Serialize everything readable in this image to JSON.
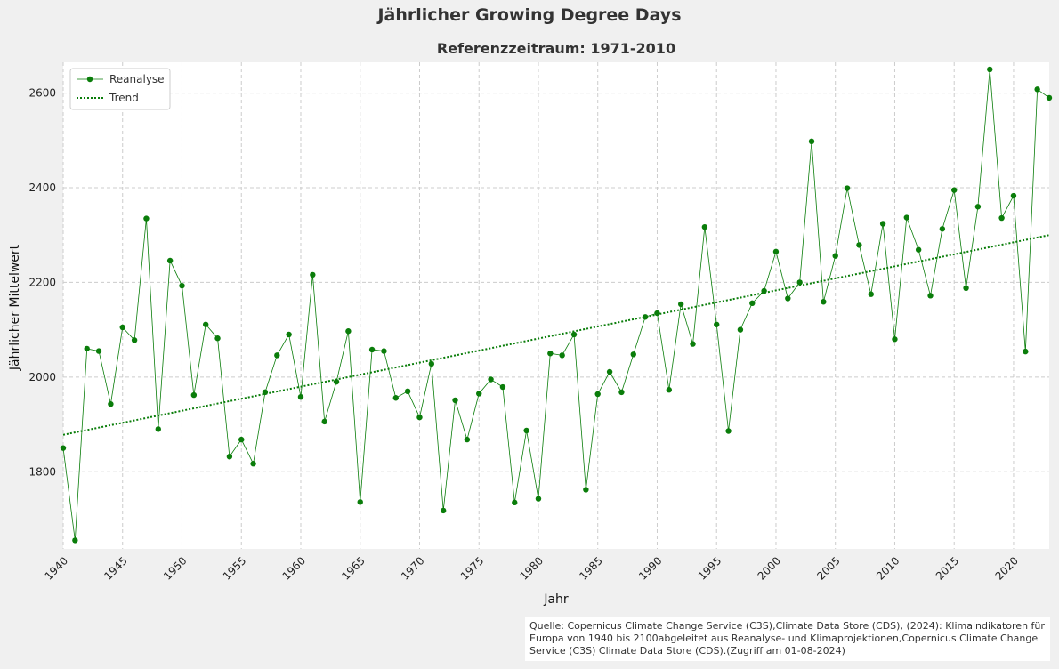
{
  "title": "Jährlicher Growing Degree Days",
  "subtitle": "Referenzzeitraum: 1971-2010",
  "source": "Quelle: Copernicus Climate Change Service (C3S),Climate Data Store (CDS), (2024): Klimaindikatoren für Europa von 1940 bis 2100abgeleitet aus Reanalyse- und Klimaprojektionen,Copernicus Climate Change Service (C3S) Climate Data Store (CDS).(Zugriff am 01-08-2024)",
  "colors": {
    "series": "#0a7d0a",
    "background": "#f0f0f0",
    "plot": "#ffffff",
    "grid": "#cccccc"
  },
  "chart_data": {
    "type": "line",
    "xlabel": "Jahr",
    "ylabel": "Jährlicher Mittelwert",
    "xlim": [
      1940,
      2023
    ],
    "ylim": [
      1637,
      2665
    ],
    "xticks": [
      1940,
      1945,
      1950,
      1955,
      1960,
      1965,
      1970,
      1975,
      1980,
      1985,
      1990,
      1995,
      2000,
      2005,
      2010,
      2015,
      2020
    ],
    "yticks": [
      1800,
      2000,
      2200,
      2400,
      2600
    ],
    "grid": true,
    "legend_position": "top-left",
    "series": [
      {
        "name": "Reanalyse",
        "style": "line-with-markers",
        "x": [
          1940,
          1941,
          1942,
          1943,
          1944,
          1945,
          1946,
          1947,
          1948,
          1949,
          1950,
          1951,
          1952,
          1953,
          1954,
          1955,
          1956,
          1957,
          1958,
          1959,
          1960,
          1961,
          1962,
          1963,
          1964,
          1965,
          1966,
          1967,
          1968,
          1969,
          1970,
          1971,
          1972,
          1973,
          1974,
          1975,
          1976,
          1977,
          1978,
          1979,
          1980,
          1981,
          1982,
          1983,
          1984,
          1985,
          1986,
          1987,
          1988,
          1989,
          1990,
          1991,
          1992,
          1993,
          1994,
          1995,
          1996,
          1997,
          1998,
          1999,
          2000,
          2001,
          2002,
          2003,
          2004,
          2005,
          2006,
          2007,
          2008,
          2009,
          2010,
          2011,
          2012,
          2013,
          2014,
          2015,
          2016,
          2017,
          2018,
          2019,
          2020,
          2021,
          2022,
          2023
        ],
        "values": [
          1850,
          1655,
          2060,
          2055,
          1943,
          2105,
          2078,
          2335,
          1890,
          2246,
          2193,
          1962,
          2111,
          2082,
          1832,
          1868,
          1817,
          1968,
          2046,
          2090,
          1958,
          2216,
          1906,
          1990,
          2097,
          1736,
          2058,
          2055,
          1956,
          1970,
          1915,
          2028,
          1718,
          1951,
          1868,
          1965,
          1995,
          1979,
          1735,
          1887,
          1743,
          2050,
          2046,
          2090,
          1762,
          1964,
          2011,
          1968,
          2048,
          2127,
          2135,
          1973,
          2154,
          2070,
          2317,
          2111,
          1886,
          2100,
          2156,
          2182,
          2265,
          2166,
          2200,
          2498,
          2159,
          2256,
          2399,
          2279,
          2175,
          2324,
          2080,
          2337,
          2269,
          2172,
          2313,
          2395,
          2188,
          2360,
          2650,
          2336,
          2383,
          2054,
          2608,
          2590
        ]
      },
      {
        "name": "Trend",
        "style": "dotted",
        "x": [
          1940,
          2023
        ],
        "values": [
          1878,
          2300
        ]
      }
    ]
  }
}
